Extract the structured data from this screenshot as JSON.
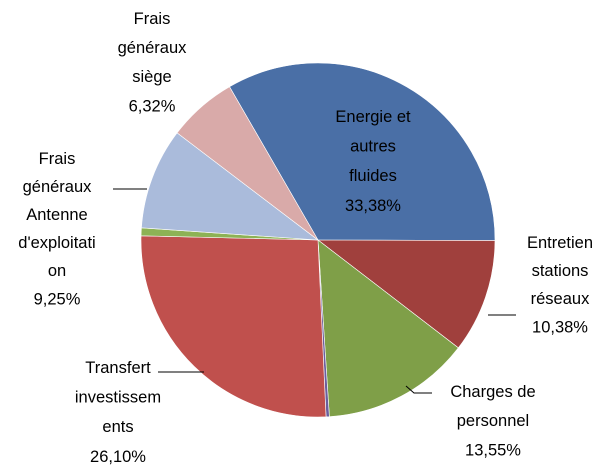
{
  "chart_data": {
    "type": "pie",
    "categories": [
      "Energie et autres fluides",
      "Entretien stations réseaux",
      "Charges de personnel",
      null,
      "Transfert investissements",
      null,
      "Frais généraux Antenne d'exploitation",
      "Frais généraux siège"
    ],
    "values": [
      33.38,
      10.38,
      13.55,
      0.3,
      26.1,
      0.72,
      9.25,
      6.32
    ],
    "value_labels": [
      "33,38%",
      "10,38%",
      "13,55%",
      null,
      "26,10%",
      null,
      "9,25%",
      "6,32%"
    ],
    "colors": [
      "#4a6fa6",
      "#a0403d",
      "#7f9f48",
      "#6b5f9e",
      "#c0504d",
      "#8db255",
      "#aabbdb",
      "#d9aaa9"
    ]
  }
}
